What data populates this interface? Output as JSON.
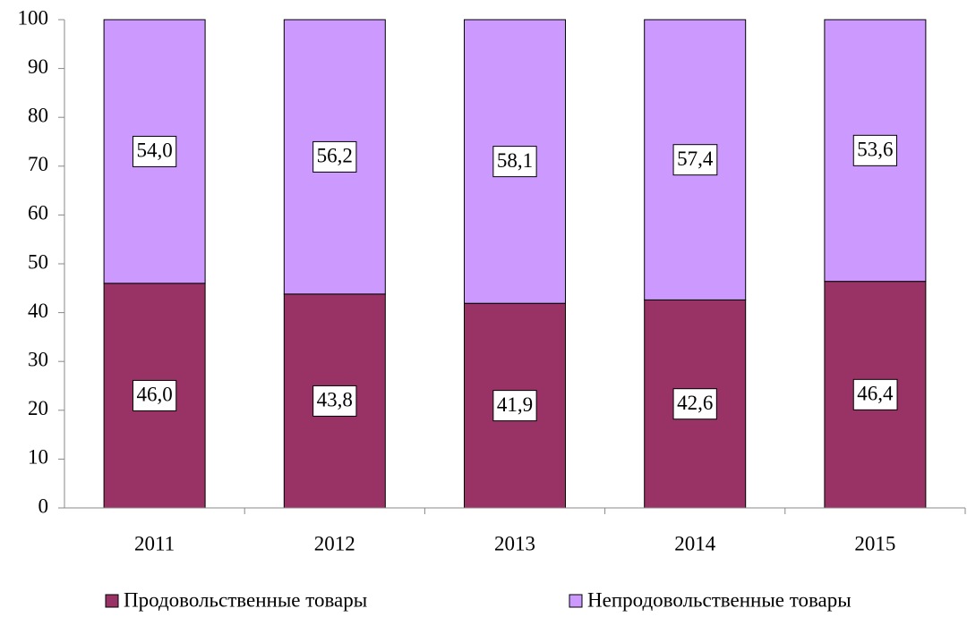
{
  "chart_data": {
    "type": "stacked_bar",
    "categories": [
      "2011",
      "2012",
      "2013",
      "2014",
      "2015"
    ],
    "series": [
      {
        "name": "Продовольственные товары",
        "color": "#993366",
        "values": [
          46.0,
          43.8,
          41.9,
          42.6,
          46.4
        ],
        "value_labels": [
          "46,0",
          "43,8",
          "41,9",
          "42,6",
          "46,4"
        ]
      },
      {
        "name": "Непродовольственные товары",
        "color": "#cc99ff",
        "values": [
          54.0,
          56.2,
          58.1,
          57.4,
          53.6
        ],
        "value_labels": [
          "54,0",
          "56,2",
          "58,1",
          "57,4",
          "53,6"
        ]
      }
    ],
    "ylim": [
      0,
      100
    ],
    "yticks": [
      0,
      10,
      20,
      30,
      40,
      50,
      60,
      70,
      80,
      90,
      100
    ],
    "grid": false,
    "legend": "bottom"
  }
}
